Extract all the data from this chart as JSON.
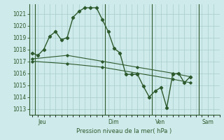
{
  "background_color": "#ceeaea",
  "grid_color": "#a8cccc",
  "line_color": "#2d5a2d",
  "xlabel": "Pression niveau de la mer( hPa )",
  "ylim": [
    1012.5,
    1021.8
  ],
  "yticks": [
    1013,
    1014,
    1015,
    1016,
    1017,
    1018,
    1019,
    1020,
    1021
  ],
  "day_labels": [
    "Jeu",
    "Dim",
    "Ven",
    "Sam"
  ],
  "day_positions": [
    1,
    13,
    21,
    29
  ],
  "vline_x": [
    0.5,
    12.5,
    20.5,
    28.5
  ],
  "xlim": [
    -0.5,
    32
  ],
  "series1": [
    [
      0,
      1017.7
    ],
    [
      1,
      1017.5
    ],
    [
      2,
      1018.0
    ],
    [
      3,
      1019.1
    ],
    [
      4,
      1019.5
    ],
    [
      5,
      1018.8
    ],
    [
      6,
      1019.0
    ],
    [
      7,
      1020.7
    ],
    [
      8,
      1021.2
    ],
    [
      9,
      1021.5
    ],
    [
      10,
      1021.5
    ],
    [
      11,
      1021.5
    ],
    [
      12,
      1020.5
    ],
    [
      13,
      1019.5
    ],
    [
      14,
      1018.1
    ],
    [
      15,
      1017.7
    ],
    [
      16,
      1015.9
    ],
    [
      17,
      1015.9
    ],
    [
      18,
      1015.9
    ],
    [
      19,
      1014.9
    ],
    [
      20,
      1014.0
    ],
    [
      21,
      1014.5
    ],
    [
      22,
      1014.8
    ],
    [
      23,
      1013.1
    ],
    [
      24,
      1015.9
    ],
    [
      25,
      1016.0
    ],
    [
      26,
      1015.2
    ],
    [
      27,
      1015.7
    ]
  ],
  "series2": [
    [
      0,
      1017.2
    ],
    [
      6,
      1017.5
    ],
    [
      12,
      1017.0
    ],
    [
      18,
      1016.5
    ],
    [
      24,
      1016.0
    ],
    [
      27,
      1015.7
    ]
  ],
  "series3": [
    [
      0,
      1017.0
    ],
    [
      6,
      1016.8
    ],
    [
      12,
      1016.5
    ],
    [
      18,
      1016.0
    ],
    [
      24,
      1015.5
    ],
    [
      27,
      1015.2
    ]
  ]
}
